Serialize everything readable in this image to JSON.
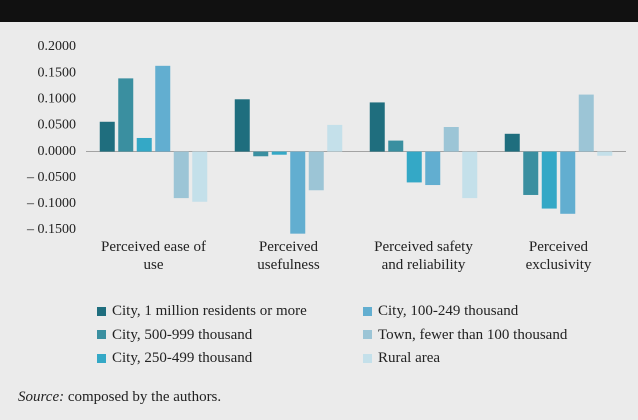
{
  "chart_data": {
    "type": "bar",
    "categories": [
      "Perceived ease of use",
      "Perceived usefulness",
      "Perceived safety and reliability",
      "Perceived exclusivity"
    ],
    "series": [
      {
        "name": "City, 1 million residents or more",
        "color": "#1f6e7e",
        "values": [
          0.057,
          0.1,
          0.094,
          0.034
        ]
      },
      {
        "name": "City, 500-999 thousand",
        "color": "#3a8fa0",
        "values": [
          0.14,
          -0.009,
          0.021,
          -0.083
        ]
      },
      {
        "name": "City, 250-499 thousand",
        "color": "#34a8c6",
        "values": [
          0.026,
          -0.006,
          -0.059,
          -0.109
        ]
      },
      {
        "name": "City, 100-249 thousand",
        "color": "#62aed0",
        "values": [
          0.164,
          -0.157,
          -0.064,
          -0.119
        ]
      },
      {
        "name": "Town, fewer than 100 thousand",
        "color": "#9cc5d6",
        "values": [
          -0.089,
          -0.074,
          0.047,
          0.109
        ]
      },
      {
        "name": "Rural area",
        "color": "#c4e0ea",
        "values": [
          -0.096,
          0.051,
          -0.089,
          -0.008
        ]
      }
    ],
    "ylim": [
      -0.15,
      0.2
    ],
    "yticks": [
      {
        "value": 0.2,
        "label": "0.2000"
      },
      {
        "value": 0.15,
        "label": "0.1500"
      },
      {
        "value": 0.1,
        "label": "0.1000"
      },
      {
        "value": 0.05,
        "label": "0.0500"
      },
      {
        "value": 0,
        "label": "0.0000"
      },
      {
        "value": -0.05,
        "label": "– 0.0500"
      },
      {
        "value": -0.1,
        "label": "– 0.1000"
      },
      {
        "value": -0.15,
        "label": "– 0.1500"
      }
    ],
    "source_label": "Source:",
    "source_text": "composed by the authors."
  }
}
